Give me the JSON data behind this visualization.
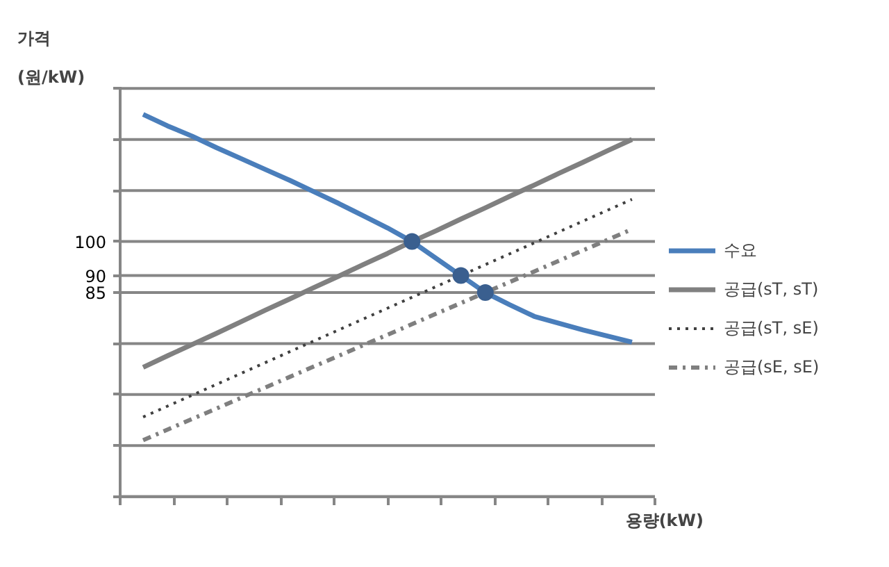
{
  "chart_data": {
    "type": "line",
    "xlabel": "용량(kW)",
    "ylabel": "가격\n(원/kW)",
    "categories": [
      null,
      null,
      null,
      null,
      null,
      null,
      null,
      null,
      null,
      null,
      null,
      null,
      null,
      null,
      null,
      null,
      null,
      null,
      null,
      null,
      null
    ],
    "ylim": [
      25,
      145
    ],
    "yticks": [
      {
        "value": 25,
        "label": null
      },
      {
        "value": 40,
        "label": null
      },
      {
        "value": 55,
        "label": null
      },
      {
        "value": 70,
        "label": null
      },
      85,
      90,
      100,
      {
        "value": 115,
        "label": null
      },
      {
        "value": 130,
        "label": null
      },
      {
        "value": 145,
        "label": null
      }
    ],
    "tick_labels": "y",
    "grid": "y",
    "legend": "right",
    "marker": "none",
    "series": [
      {
        "name": "수요",
        "color": "#4a7ebb",
        "line_style": "solid",
        "values": [
          137.4,
          134,
          131,
          127.6,
          124.4,
          121.2,
          118,
          114.6,
          111.2,
          107.6,
          104,
          100,
          95,
          90,
          85,
          81.4,
          78,
          76,
          74,
          72.2,
          70.4
        ]
      },
      {
        "name": "공급(sT, sT)",
        "color": "#808080",
        "line_style": "solid",
        "values": [
          63,
          66.4,
          69.7,
          73,
          76.4,
          79.8,
          83.1,
          86.5,
          89.8,
          93.2,
          96.5,
          100,
          103.2,
          106.6,
          109.9,
          113.3,
          116.6,
          120,
          123.3,
          126.7,
          130
        ]
      },
      {
        "name": "공급(sT, sE)",
        "color": "#404040",
        "line_style": "dotted",
        "values": [
          48.4,
          51.6,
          54.8,
          58,
          61.2,
          64.4,
          67.6,
          70.8,
          74,
          77.2,
          80.4,
          83.6,
          86.8,
          90,
          93.2,
          96.4,
          99.6,
          102.8,
          106,
          109.2,
          112.4
        ]
      },
      {
        "name": "공급(sE, sE)",
        "color": "#7f7f7f",
        "line_style": "dashdot",
        "values": [
          41.6,
          44.7,
          47.8,
          50.9,
          54,
          57.1,
          60.2,
          63.3,
          66.4,
          69.5,
          72.6,
          75.7,
          78.8,
          81.9,
          85,
          88.1,
          91.2,
          94.3,
          97.4,
          100.5,
          103.6
        ]
      },
      {
        "type": "scatter",
        "marker": "circle",
        "color": "#3a5f8f",
        "values": [
          null,
          null,
          null,
          null,
          null,
          null,
          null,
          null,
          null,
          null,
          null,
          100,
          null,
          90,
          85,
          null,
          null,
          null,
          null,
          null,
          null
        ]
      }
    ]
  }
}
